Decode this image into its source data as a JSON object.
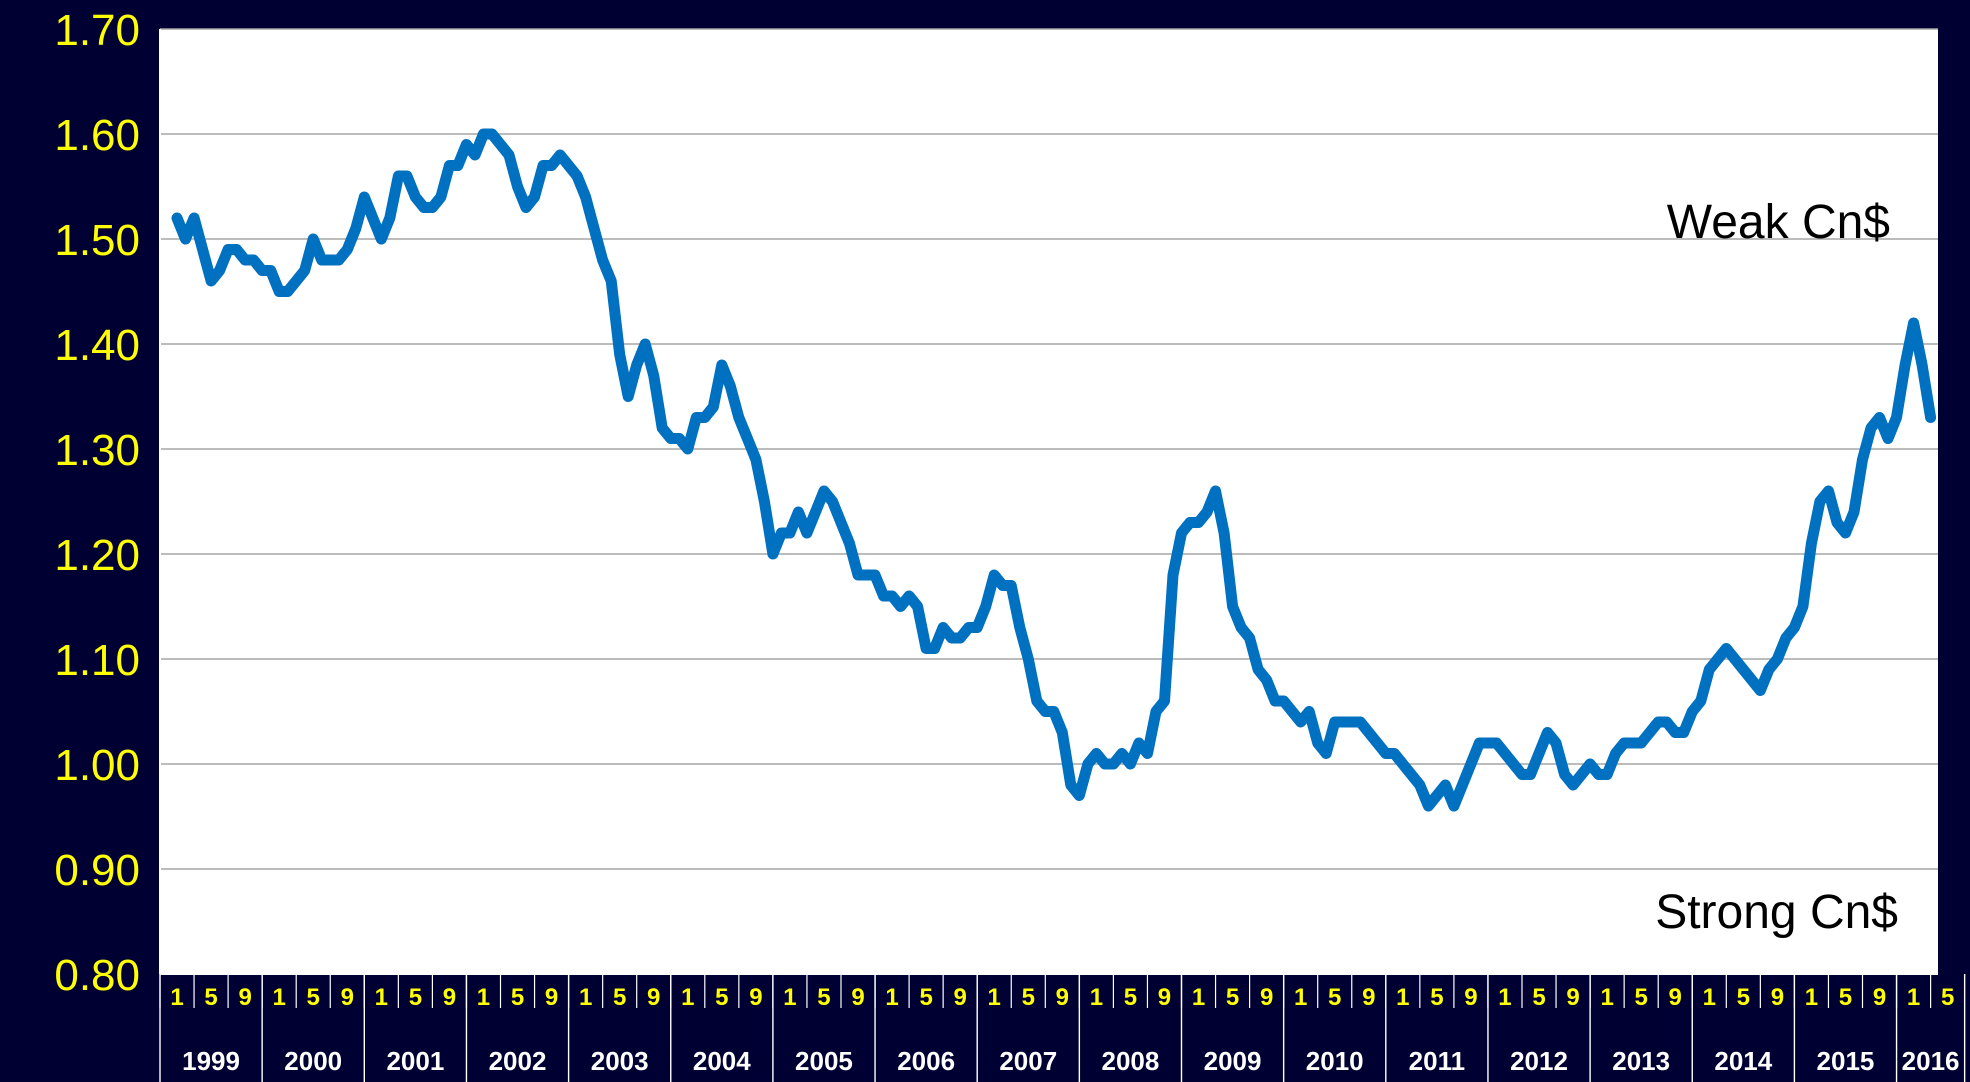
{
  "page": {
    "background": "#000033"
  },
  "chart_data": {
    "type": "line",
    "title": "",
    "xlabel": "",
    "ylabel": "",
    "ylim": [
      0.8,
      1.7
    ],
    "y_ticks": [
      "0.80",
      "0.90",
      "1.00",
      "1.10",
      "1.20",
      "1.30",
      "1.40",
      "1.50",
      "1.60",
      "1.70"
    ],
    "grid": true,
    "annotations": {
      "top": "Weak Cn$",
      "bottom": "Strong Cn$"
    },
    "years": [
      "1999",
      "2000",
      "2001",
      "2002",
      "2003",
      "2004",
      "2005",
      "2006",
      "2007",
      "2008",
      "2009",
      "2010",
      "2011",
      "2012",
      "2013",
      "2014",
      "2015",
      "2016"
    ],
    "month_ticks": [
      "1",
      "5",
      "9"
    ],
    "last_year_month_ticks": [
      "1",
      "5"
    ],
    "colors": {
      "plot_bg": "#ffffff",
      "line": "#0070c0",
      "grid": "#a6a6a6",
      "ytick": "#ffff00",
      "xtick": "#ffff00",
      "year_label": "#ffffff",
      "annotation": "#000000"
    },
    "series": [
      {
        "start": "1999-01",
        "values": [
          1.52,
          1.5,
          1.52,
          1.49,
          1.46,
          1.47,
          1.49,
          1.49,
          1.48,
          1.48,
          1.47,
          1.47,
          1.45,
          1.45,
          1.46,
          1.47,
          1.5,
          1.48,
          1.48,
          1.48,
          1.49,
          1.51,
          1.54,
          1.52,
          1.5,
          1.52,
          1.56,
          1.56,
          1.54,
          1.53,
          1.53,
          1.54,
          1.57,
          1.57,
          1.59,
          1.58,
          1.6,
          1.6,
          1.59,
          1.58,
          1.55,
          1.53,
          1.54,
          1.57,
          1.57,
          1.58,
          1.57,
          1.56,
          1.54,
          1.51,
          1.48,
          1.46,
          1.39,
          1.35,
          1.38,
          1.4,
          1.37,
          1.32,
          1.31,
          1.31,
          1.3,
          1.33,
          1.33,
          1.34,
          1.38,
          1.36,
          1.33,
          1.31,
          1.29,
          1.25,
          1.2,
          1.22,
          1.22,
          1.24,
          1.22,
          1.24,
          1.26,
          1.25,
          1.23,
          1.21,
          1.18,
          1.18,
          1.18,
          1.16,
          1.16,
          1.15,
          1.16,
          1.15,
          1.11,
          1.11,
          1.13,
          1.12,
          1.12,
          1.13,
          1.13,
          1.15,
          1.18,
          1.17,
          1.17,
          1.13,
          1.1,
          1.06,
          1.05,
          1.05,
          1.03,
          0.98,
          0.97,
          1.0,
          1.01,
          1.0,
          1.0,
          1.01,
          1.0,
          1.02,
          1.01,
          1.05,
          1.06,
          1.18,
          1.22,
          1.23,
          1.23,
          1.24,
          1.26,
          1.22,
          1.15,
          1.13,
          1.12,
          1.09,
          1.08,
          1.06,
          1.06,
          1.05,
          1.04,
          1.05,
          1.02,
          1.01,
          1.04,
          1.04,
          1.04,
          1.04,
          1.03,
          1.02,
          1.01,
          1.01,
          1.0,
          0.99,
          0.98,
          0.96,
          0.97,
          0.98,
          0.96,
          0.98,
          1.0,
          1.02,
          1.02,
          1.02,
          1.01,
          1.0,
          0.99,
          0.99,
          1.01,
          1.03,
          1.02,
          0.99,
          0.98,
          0.99,
          1.0,
          0.99,
          0.99,
          1.01,
          1.02,
          1.02,
          1.02,
          1.03,
          1.04,
          1.04,
          1.03,
          1.03,
          1.05,
          1.06,
          1.09,
          1.1,
          1.11,
          1.1,
          1.09,
          1.08,
          1.07,
          1.09,
          1.1,
          1.12,
          1.13,
          1.15,
          1.21,
          1.25,
          1.26,
          1.23,
          1.22,
          1.24,
          1.29,
          1.32,
          1.33,
          1.31,
          1.33,
          1.38,
          1.42,
          1.38,
          1.33
        ]
      }
    ]
  }
}
